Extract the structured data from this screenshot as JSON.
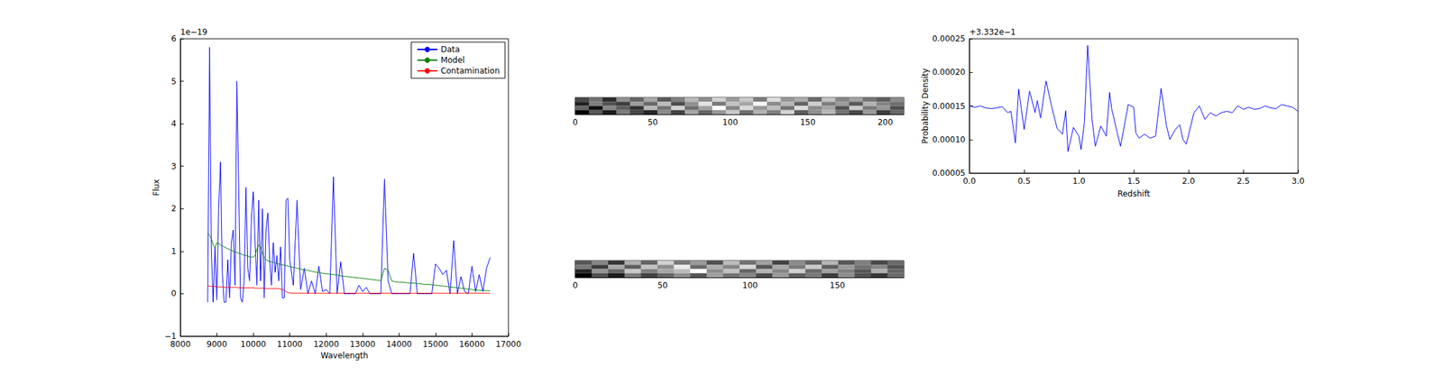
{
  "chart_data": [
    {
      "type": "line",
      "xlabel": "Wavelength",
      "ylabel": "Flux",
      "annotations": [
        "1e−19"
      ],
      "x": [
        8750,
        8800,
        8850,
        8900,
        8950,
        9000,
        9050,
        9100,
        9150,
        9200,
        9250,
        9300,
        9350,
        9400,
        9450,
        9500,
        9550,
        9600,
        9650,
        9700,
        9750,
        9800,
        9850,
        9900,
        9950,
        10000,
        10050,
        10100,
        10150,
        10200,
        10250,
        10300,
        10350,
        10400,
        10450,
        10500,
        10550,
        10600,
        10650,
        10700,
        10750,
        10800,
        10850,
        10900,
        10950,
        11000,
        11100,
        11200,
        11300,
        11400,
        11500,
        11600,
        11700,
        11800,
        11900,
        12000,
        12100,
        12200,
        12300,
        12400,
        12500,
        12600,
        12700,
        12800,
        12900,
        13000,
        13100,
        13200,
        13300,
        13400,
        13500,
        13600,
        13700,
        13800,
        13900,
        14000,
        14100,
        14200,
        14300,
        14400,
        14500,
        14600,
        14700,
        14800,
        14900,
        15000,
        15100,
        15200,
        15300,
        15400,
        15500,
        15600,
        15700,
        15800,
        15900,
        16000,
        16100,
        16200,
        16300,
        16400,
        16500
      ],
      "series": [
        {
          "name": "Data",
          "color": "#0000ff",
          "values": [
            -0.2,
            5.8,
            1.0,
            -0.2,
            1.1,
            -0.15,
            2.0,
            3.1,
            0.5,
            -0.2,
            -0.2,
            0.8,
            -0.1,
            1.2,
            1.5,
            0.2,
            5.0,
            2.5,
            -0.1,
            -0.2,
            0.3,
            2.5,
            0.6,
            0.3,
            1.8,
            2.4,
            1.2,
            0.2,
            2.2,
            0.3,
            2.0,
            -0.1,
            1.5,
            1.9,
            0.8,
            0.2,
            1.2,
            0.5,
            0.9,
            0.3,
            1.1,
            -0.1,
            -0.1,
            2.2,
            2.25,
            0.8,
            0.2,
            2.2,
            0.1,
            0.6,
            0,
            0.3,
            0,
            0.65,
            0.05,
            0.1,
            0,
            2.75,
            0,
            0.75,
            0,
            0,
            0,
            0,
            0.2,
            0.05,
            0.15,
            0,
            0,
            0,
            0,
            2.7,
            0.3,
            0,
            0,
            0,
            0,
            0,
            0,
            0.95,
            0,
            0,
            0,
            0,
            0,
            0.7,
            0.6,
            0.45,
            0.55,
            0,
            1.25,
            0,
            0.4,
            0.05,
            0,
            0.65,
            0.05,
            0.45,
            0.05,
            0.6,
            0.85
          ]
        },
        {
          "name": "Model",
          "color": "#008000",
          "values": [
            1.42,
            1.38,
            1.3,
            1.15,
            1.08,
            1.2,
            1.18,
            1.15,
            1.12,
            1.1,
            1.08,
            1.06,
            1.04,
            1.02,
            1.0,
            0.98,
            0.97,
            0.95,
            0.94,
            0.92,
            0.91,
            0.9,
            0.88,
            0.87,
            0.86,
            0.86,
            0.9,
            1.05,
            1.15,
            1.1,
            0.95,
            0.85,
            0.8,
            0.78,
            0.76,
            0.75,
            0.74,
            0.72,
            0.71,
            0.7,
            0.69,
            0.68,
            0.67,
            0.66,
            0.65,
            0.64,
            0.62,
            0.6,
            0.58,
            0.56,
            0.55,
            0.53,
            0.51,
            0.5,
            0.48,
            0.47,
            0.46,
            0.45,
            0.44,
            0.42,
            0.41,
            0.4,
            0.39,
            0.38,
            0.37,
            0.36,
            0.35,
            0.34,
            0.33,
            0.32,
            0.31,
            0.6,
            0.55,
            0.3,
            0.28,
            0.27,
            0.27,
            0.26,
            0.25,
            0.25,
            0.24,
            0.23,
            0.22,
            0.22,
            0.21,
            0.2,
            0.19,
            0.18,
            0.17,
            0.16,
            0.15,
            0.14,
            0.13,
            0.12,
            0.11,
            0.1,
            0.09,
            0.08,
            0.08,
            0.07,
            0.07
          ]
        },
        {
          "name": "Contamination",
          "color": "#ff0000",
          "values": [
            0.18,
            0.18,
            0.17,
            0.17,
            0.17,
            0.16,
            0.16,
            0.16,
            0.16,
            0.15,
            0.15,
            0.15,
            0.15,
            0.15,
            0.15,
            0.15,
            0.15,
            0.14,
            0.14,
            0.14,
            0.14,
            0.14,
            0.14,
            0.14,
            0.14,
            0.14,
            0.13,
            0.13,
            0.13,
            0.13,
            0.13,
            0.13,
            0.12,
            0.12,
            0.12,
            0.12,
            0.12,
            0.12,
            0.12,
            0.12,
            0.11,
            0.1,
            0.08,
            0.05,
            0.03,
            0.02,
            0.01,
            0.01,
            0.01,
            0.01,
            0.01,
            0.01,
            0.01,
            0.01,
            0.01,
            0.01,
            0.01,
            0.01,
            0.01,
            0.01,
            0.01,
            0.01,
            0.01,
            0.01,
            0.01,
            0.01,
            0.01,
            0.01,
            0.01,
            0.01,
            0.01,
            0.01,
            0.01,
            0.01,
            0.01,
            0.01,
            0.01,
            0.01,
            0.01,
            0.01,
            0.01,
            0.01,
            0.01,
            0.01,
            0.01,
            0.01,
            0.01,
            0.01,
            0.01,
            0.01,
            0.01,
            0.01,
            0.01,
            0.01,
            0.01,
            0.01,
            0.01,
            0.01,
            0.01,
            0.01,
            0.01
          ]
        }
      ],
      "xlim": [
        8000,
        17000
      ],
      "xticks": [
        8000,
        9000,
        10000,
        11000,
        12000,
        13000,
        14000,
        15000,
        16000,
        17000
      ],
      "ylim": [
        -1,
        6
      ],
      "yticks": [
        {
          "value": -1,
          "label": "−1"
        },
        0,
        1,
        2,
        3,
        4,
        5,
        6
      ],
      "legend": "upper right",
      "grid": false
    },
    {
      "type": "heatmap",
      "cells": [
        [
          0.35,
          0.42,
          0.3,
          0.48,
          0.4,
          0.52,
          0.38,
          0.45,
          0.55,
          0.47,
          0.6,
          0.5,
          0.58,
          0.44,
          0.62,
          0.49,
          0.53,
          0.41,
          0.57,
          0.46,
          0.51,
          0.43,
          0.39,
          0.47
        ],
        [
          0.28,
          0.45,
          0.37,
          0.33,
          0.5,
          0.41,
          0.56,
          0.36,
          0.48,
          0.63,
          0.44,
          0.57,
          0.52,
          0.66,
          0.47,
          0.55,
          0.4,
          0.59,
          0.45,
          0.5,
          0.38,
          0.54,
          0.46,
          0.42
        ],
        [
          0.4,
          0.25,
          0.46,
          0.39,
          0.31,
          0.55,
          0.43,
          0.6,
          0.42,
          0.51,
          0.68,
          0.46,
          0.61,
          0.49,
          0.56,
          0.43,
          0.62,
          0.47,
          0.52,
          0.37,
          0.58,
          0.44,
          0.49,
          0.36
        ],
        [
          0.22,
          0.38,
          0.27,
          0.44,
          0.35,
          0.29,
          0.47,
          0.34,
          0.52,
          0.4,
          0.49,
          0.58,
          0.42,
          0.54,
          0.45,
          0.6,
          0.39,
          0.48,
          0.55,
          0.43,
          0.35,
          0.5,
          0.33,
          0.41
        ]
      ],
      "xlim": [
        0,
        212
      ],
      "xticks": [
        0,
        50,
        100,
        150,
        200
      ],
      "tick_labels": "x"
    },
    {
      "type": "heatmap",
      "cells": [
        [
          0.45,
          0.52,
          0.4,
          0.58,
          0.47,
          0.63,
          0.5,
          0.55,
          0.44,
          0.6,
          0.49,
          0.56,
          0.42,
          0.53,
          0.47,
          0.59,
          0.45,
          0.51,
          0.43,
          0.48
        ],
        [
          0.5,
          0.41,
          0.57,
          0.46,
          0.61,
          0.53,
          0.67,
          0.48,
          0.58,
          0.52,
          0.64,
          0.45,
          0.57,
          0.5,
          0.62,
          0.46,
          0.55,
          0.49,
          0.52,
          0.44
        ],
        [
          0.38,
          0.54,
          0.47,
          0.62,
          0.51,
          0.57,
          0.6,
          0.7,
          0.53,
          0.61,
          0.47,
          0.59,
          0.52,
          0.63,
          0.48,
          0.56,
          0.51,
          0.45,
          0.58,
          0.47
        ],
        [
          0.32,
          0.44,
          0.36,
          0.5,
          0.42,
          0.47,
          0.53,
          0.45,
          0.56,
          0.49,
          0.52,
          0.43,
          0.55,
          0.46,
          0.5,
          0.41,
          0.53,
          0.44,
          0.4,
          0.48
        ]
      ],
      "xlim": [
        0,
        188
      ],
      "xticks": [
        0,
        50,
        100,
        150
      ],
      "tick_labels": "x"
    },
    {
      "type": "line",
      "xlabel": "Redshift",
      "ylabel": "Probability Density",
      "annotations": [
        "+3.332e−1"
      ],
      "x": [
        0,
        0.05,
        0.1,
        0.15,
        0.2,
        0.25,
        0.3,
        0.35,
        0.38,
        0.42,
        0.45,
        0.5,
        0.55,
        0.6,
        0.62,
        0.65,
        0.7,
        0.75,
        0.8,
        0.85,
        0.88,
        0.9,
        0.95,
        1.0,
        1.02,
        1.05,
        1.08,
        1.12,
        1.15,
        1.2,
        1.25,
        1.28,
        1.3,
        1.35,
        1.38,
        1.45,
        1.5,
        1.52,
        1.55,
        1.6,
        1.65,
        1.7,
        1.75,
        1.8,
        1.83,
        1.88,
        1.92,
        1.95,
        1.98,
        2.05,
        2.1,
        2.15,
        2.2,
        2.25,
        2.3,
        2.35,
        2.4,
        2.45,
        2.5,
        2.55,
        2.6,
        2.65,
        2.7,
        2.75,
        2.8,
        2.85,
        2.9,
        2.95,
        3.0
      ],
      "series": [
        {
          "color": "#0000ff",
          "values": [
            0.00015,
            0.000148,
            0.00015,
            0.000147,
            0.000146,
            0.000147,
            0.000149,
            0.00014,
            0.000142,
            9.5e-05,
            0.000175,
            0.000115,
            0.000172,
            0.00014,
            0.000158,
            0.000132,
            0.000187,
            0.00015,
            0.000117,
            0.000108,
            0.000143,
            8.2e-05,
            0.000118,
            0.000105,
            8.5e-05,
            0.000125,
            0.00024,
            0.00013,
            9e-05,
            0.00012,
            0.000105,
            0.00017,
            0.000145,
            0.00011,
            9e-05,
            0.000152,
            0.000148,
            0.00011,
            0.000102,
            0.000108,
            0.000102,
            0.000105,
            0.000176,
            0.00012,
            0.0001,
            0.000115,
            0.000122,
            0.0001,
            9.3e-05,
            0.00014,
            0.00015,
            0.00013,
            0.00014,
            0.000135,
            0.00014,
            0.000142,
            0.00014,
            0.00015,
            0.000145,
            0.000148,
            0.000145,
            0.000146,
            0.00015,
            0.000147,
            0.000146,
            0.000152,
            0.00015,
            0.000148,
            0.000142
          ]
        }
      ],
      "xlim": [
        0,
        3
      ],
      "xticks": [
        {
          "value": 0,
          "label": "0.0"
        },
        0.5,
        {
          "value": 1,
          "label": "1.0"
        },
        1.5,
        {
          "value": 2,
          "label": "2.0"
        },
        2.5,
        {
          "value": 3,
          "label": "3.0"
        }
      ],
      "ylim": [
        5e-05,
        0.00025
      ],
      "yticks": [
        {
          "value": 5e-05,
          "label": "0.00005"
        },
        {
          "value": 0.0001,
          "label": "0.00010"
        },
        {
          "value": 0.00015,
          "label": "0.00015"
        },
        {
          "value": 0.0002,
          "label": "0.00020"
        },
        {
          "value": 0.00025,
          "label": "0.00025"
        }
      ],
      "grid": false
    }
  ]
}
